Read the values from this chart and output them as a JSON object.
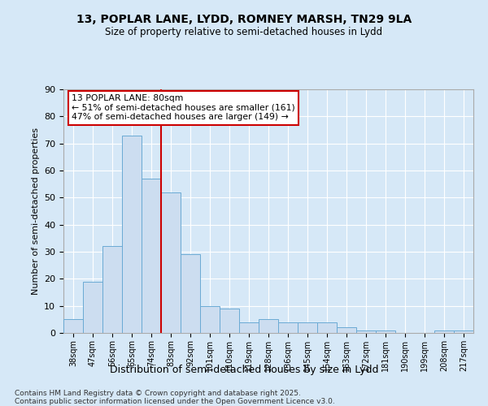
{
  "title_line1": "13, POPLAR LANE, LYDD, ROMNEY MARSH, TN29 9LA",
  "title_line2": "Size of property relative to semi-detached houses in Lydd",
  "xlabel": "Distribution of semi-detached houses by size in Lydd",
  "ylabel": "Number of semi-detached properties",
  "categories": [
    "38sqm",
    "47sqm",
    "56sqm",
    "65sqm",
    "74sqm",
    "83sqm",
    "92sqm",
    "101sqm",
    "110sqm",
    "119sqm",
    "128sqm",
    "136sqm",
    "145sqm",
    "154sqm",
    "163sqm",
    "172sqm",
    "181sqm",
    "190sqm",
    "199sqm",
    "208sqm",
    "217sqm"
  ],
  "values": [
    5,
    19,
    32,
    73,
    57,
    52,
    29,
    10,
    9,
    4,
    5,
    4,
    4,
    4,
    2,
    1,
    1,
    0,
    0,
    1,
    1
  ],
  "bar_color": "#ccddf0",
  "bar_edge_color": "#6aaad4",
  "vline_color": "#cc0000",
  "annotation_text": "13 POPLAR LANE: 80sqm\n← 51% of semi-detached houses are smaller (161)\n47% of semi-detached houses are larger (149) →",
  "annotation_box_facecolor": "#ffffff",
  "annotation_box_edgecolor": "#cc0000",
  "background_color": "#d6e8f7",
  "plot_bg_color": "#d6e8f7",
  "grid_color": "#ffffff",
  "footer": "Contains HM Land Registry data © Crown copyright and database right 2025.\nContains public sector information licensed under the Open Government Licence v3.0.",
  "ylim": [
    0,
    90
  ],
  "yticks": [
    0,
    10,
    20,
    30,
    40,
    50,
    60,
    70,
    80,
    90
  ]
}
